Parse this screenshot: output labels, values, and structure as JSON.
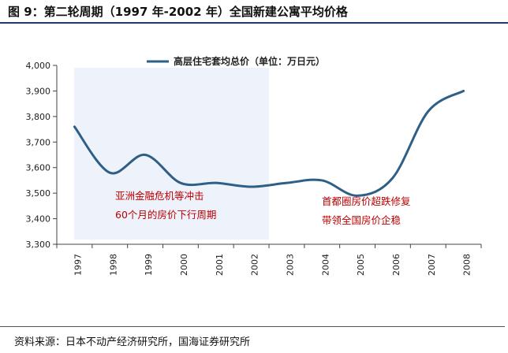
{
  "page": {
    "title": "图 9：第二轮周期（1997 年-2002 年）全国新建公寓平均价格",
    "source": "资料来源：日本不动产经济研究所，国海证券研究所"
  },
  "colors": {
    "line": "#2f5f86",
    "shade": "#eef2fb",
    "annotation": "#c00000",
    "axis": "#444444"
  },
  "chart_data": {
    "type": "line",
    "title": "",
    "xlabel": "",
    "ylabel": "",
    "ylim": [
      3300,
      4000
    ],
    "yticks": [
      3300,
      3400,
      3500,
      3600,
      3700,
      3800,
      3900,
      4000
    ],
    "ytick_labels": [
      "3,300",
      "3,400",
      "3,500",
      "3,600",
      "3,700",
      "3,800",
      "3,900",
      "4,000"
    ],
    "categories": [
      "1997",
      "1998",
      "1999",
      "2000",
      "2001",
      "2002",
      "2003",
      "2004",
      "2005",
      "2006",
      "2007",
      "2008"
    ],
    "legend": {
      "position": "top",
      "entries": [
        "高层住宅套均总价（单位：万日元）"
      ]
    },
    "series": [
      {
        "name": "高层住宅套均总价（单位：万日元）",
        "values": [
          3760,
          3580,
          3650,
          3540,
          3540,
          3525,
          3540,
          3550,
          3490,
          3560,
          3820,
          3900
        ]
      }
    ],
    "shaded_period": [
      "1997",
      "2002"
    ],
    "annotations": [
      {
        "id": "left",
        "lines": [
          "亚洲金融危机等冲击",
          "60个月的房价下行周期"
        ]
      },
      {
        "id": "right",
        "lines": [
          "首都圈房价超跌修复",
          "带领全国房价企稳"
        ]
      }
    ]
  }
}
